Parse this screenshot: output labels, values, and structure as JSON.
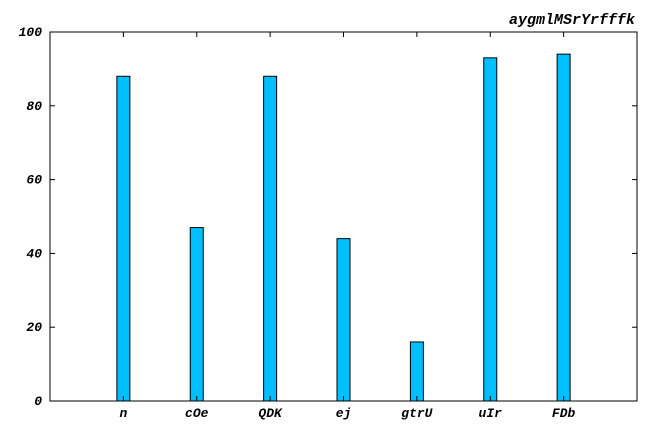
{
  "chart_data": {
    "type": "bar",
    "title": "aygmlMSrYrfffk",
    "categories": [
      "n",
      "cOe",
      "QDK",
      "ej",
      "gtrU",
      "uIr",
      "FDb"
    ],
    "values": [
      88,
      47,
      88,
      44,
      16,
      93,
      94
    ],
    "ylim": [
      0,
      100
    ],
    "yticks": [
      0,
      20,
      40,
      60,
      80,
      100
    ],
    "grid": false,
    "bar_color": "#00bfff",
    "edge_color": "#000000"
  }
}
